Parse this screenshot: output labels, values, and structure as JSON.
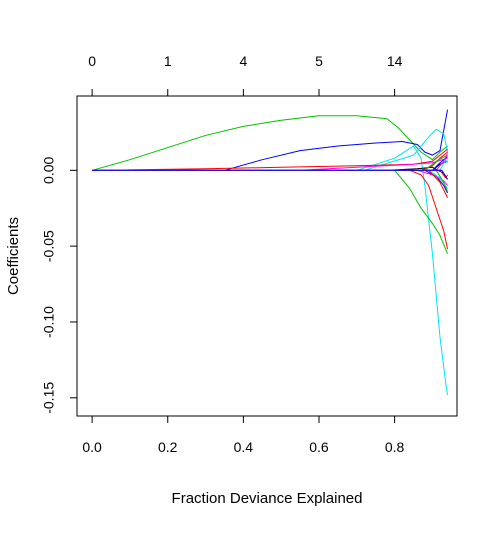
{
  "chart_data": {
    "type": "line",
    "title": "",
    "xlabel": "Fraction Deviance Explained",
    "ylabel": "Coefficients",
    "xlim": [
      -0.04,
      0.965
    ],
    "ylim": [
      -0.162,
      0.049
    ],
    "x_ticks": [
      "0.0",
      "0.2",
      "0.4",
      "0.6",
      "0.8"
    ],
    "x_tick_values": [
      0.0,
      0.2,
      0.4,
      0.6,
      0.8
    ],
    "y_ticks": [
      "0.00",
      "-0.05",
      "-0.10",
      "-0.15"
    ],
    "y_tick_values": [
      0.0,
      -0.05,
      -0.1,
      -0.15
    ],
    "top_axis": {
      "tick_labels": [
        "0",
        "1",
        "4",
        "5",
        "14"
      ],
      "tick_positions": [
        0.0,
        0.2,
        0.4,
        0.6,
        0.8
      ]
    },
    "grid": false,
    "legend": "none",
    "series": [
      {
        "color": "#00c000",
        "x": [
          0.0,
          0.1,
          0.2,
          0.3,
          0.4,
          0.5,
          0.6,
          0.7,
          0.78,
          0.81,
          0.84,
          0.87,
          0.9,
          0.92,
          0.94
        ],
        "y": [
          0.0,
          0.007,
          0.015,
          0.023,
          0.029,
          0.033,
          0.036,
          0.036,
          0.034,
          0.028,
          0.02,
          0.012,
          0.007,
          0.012,
          0.016
        ]
      },
      {
        "color": "#0000ff",
        "x": [
          0.0,
          0.35,
          0.45,
          0.55,
          0.65,
          0.75,
          0.82,
          0.86,
          0.88,
          0.9,
          0.92,
          0.94
        ],
        "y": [
          0.0,
          0.0,
          0.007,
          0.013,
          0.016,
          0.018,
          0.019,
          0.017,
          0.012,
          0.01,
          0.013,
          0.04
        ]
      },
      {
        "color": "#00e5ee",
        "x": [
          0.0,
          0.7,
          0.8,
          0.85,
          0.87,
          0.88,
          0.9,
          0.92,
          0.935,
          0.94
        ],
        "y": [
          0.0,
          0.0,
          0.008,
          0.016,
          0.008,
          -0.01,
          -0.055,
          -0.11,
          -0.14,
          -0.148
        ]
      },
      {
        "color": "#00e5ee",
        "x": [
          0.0,
          0.72,
          0.85,
          0.89,
          0.91,
          0.93,
          0.94
        ],
        "y": [
          0.0,
          0.0,
          0.01,
          0.022,
          0.027,
          0.024,
          0.012
        ]
      },
      {
        "color": "#ff0000",
        "x": [
          0.0,
          0.75,
          0.84,
          0.87,
          0.89,
          0.91,
          0.93,
          0.94
        ],
        "y": [
          0.0,
          0.0,
          0.0,
          -0.003,
          -0.01,
          -0.025,
          -0.04,
          -0.052
        ]
      },
      {
        "color": "#00c000",
        "x": [
          0.0,
          0.8,
          0.84,
          0.87,
          0.9,
          0.92,
          0.94
        ],
        "y": [
          0.0,
          0.0,
          -0.012,
          -0.025,
          -0.035,
          -0.043,
          -0.055
        ]
      },
      {
        "color": "#ff0000",
        "x": [
          0.0,
          0.3,
          0.5,
          0.7,
          0.85,
          0.9,
          0.94
        ],
        "y": [
          0.0,
          0.001,
          0.002,
          0.003,
          0.004,
          0.006,
          0.014
        ]
      },
      {
        "color": "#ff00ff",
        "x": [
          0.0,
          0.55,
          0.7,
          0.85,
          0.9,
          0.94
        ],
        "y": [
          0.0,
          0.0,
          0.002,
          0.004,
          0.005,
          0.008
        ]
      },
      {
        "color": "#000000",
        "x": [
          0.0,
          0.78,
          0.86,
          0.9,
          0.93,
          0.94
        ],
        "y": [
          0.0,
          0.0,
          0.001,
          0.002,
          -0.002,
          -0.006
        ]
      },
      {
        "color": "#0000ff",
        "x": [
          0.0,
          0.88,
          0.91,
          0.93,
          0.94
        ],
        "y": [
          0.0,
          0.0,
          -0.004,
          -0.01,
          -0.015
        ]
      },
      {
        "color": "#ff00ff",
        "x": [
          0.0,
          0.86,
          0.9,
          0.93,
          0.94
        ],
        "y": [
          0.0,
          0.0,
          -0.003,
          -0.007,
          -0.01
        ]
      },
      {
        "color": "#ff0000",
        "x": [
          0.0,
          0.87,
          0.9,
          0.92,
          0.94
        ],
        "y": [
          0.0,
          0.0,
          0.003,
          0.008,
          0.012
        ]
      },
      {
        "color": "#00c000",
        "x": [
          0.0,
          0.88,
          0.91,
          0.94
        ],
        "y": [
          0.0,
          0.0,
          0.006,
          0.01
        ]
      },
      {
        "color": "#00e5ee",
        "x": [
          0.0,
          0.89,
          0.92,
          0.94
        ],
        "y": [
          0.0,
          0.0,
          -0.005,
          -0.012
        ]
      },
      {
        "color": "#ff0000",
        "x": [
          0.0,
          0.89,
          0.92,
          0.94
        ],
        "y": [
          0.0,
          0.0,
          -0.008,
          -0.018
        ]
      },
      {
        "color": "#000000",
        "x": [
          0.0,
          0.9,
          0.92,
          0.94
        ],
        "y": [
          0.0,
          0.0,
          0.004,
          0.006
        ]
      },
      {
        "color": "#0000ff",
        "x": [
          0.0,
          0.9,
          0.92,
          0.94
        ],
        "y": [
          0.0,
          0.0,
          0.005,
          0.009
        ]
      },
      {
        "color": "#00c000",
        "x": [
          0.0,
          0.91,
          0.93,
          0.94
        ],
        "y": [
          0.0,
          0.0,
          -0.008,
          -0.014
        ]
      },
      {
        "color": "#ff00ff",
        "x": [
          0.0,
          0.91,
          0.93,
          0.94
        ],
        "y": [
          0.0,
          0.0,
          0.006,
          0.011
        ]
      },
      {
        "color": "#00e5ee",
        "x": [
          0.0,
          0.92,
          0.935,
          0.94
        ],
        "y": [
          0.0,
          0.0,
          0.007,
          0.005
        ]
      },
      {
        "color": "#ff0000",
        "x": [
          0.0,
          0.92,
          0.935,
          0.94
        ],
        "y": [
          0.0,
          0.0,
          -0.005,
          -0.003
        ]
      },
      {
        "color": "#0000ff",
        "x": [
          0.0,
          0.925,
          0.94
        ],
        "y": [
          0.0,
          0.0,
          -0.006
        ]
      }
    ]
  }
}
